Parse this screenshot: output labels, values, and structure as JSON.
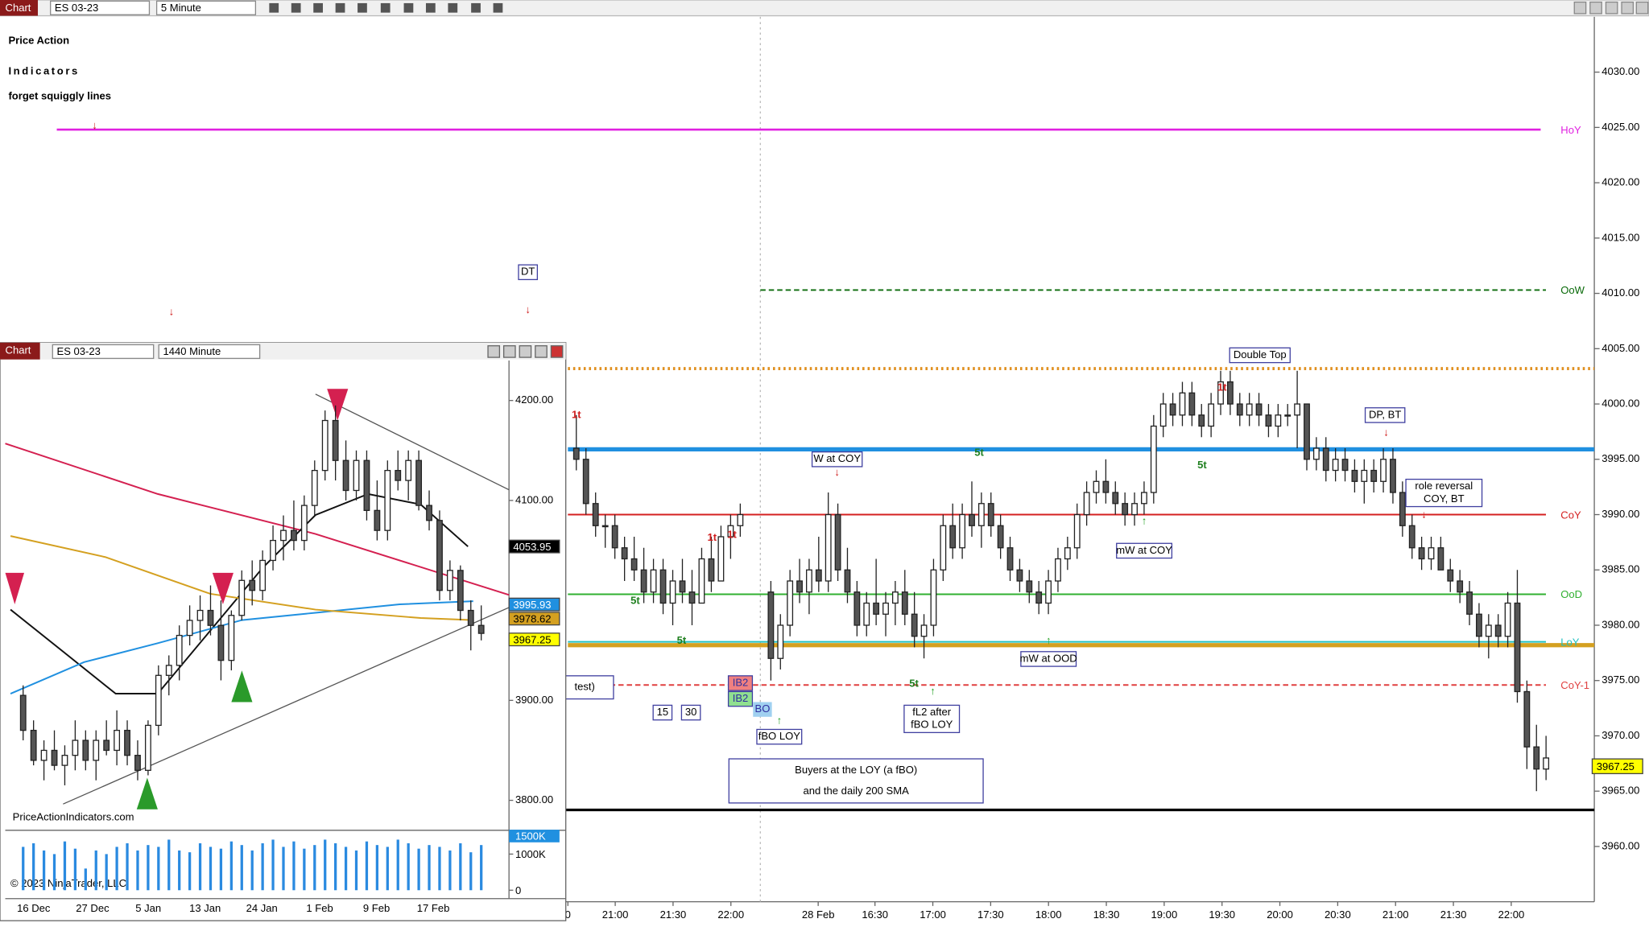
{
  "main_window": {
    "toolbar": {
      "label": "Chart",
      "instrument": "ES 03-23",
      "interval": "5 Minute"
    },
    "branding": {
      "title_line_1": "Price Action",
      "title_line_2": "Indicators",
      "tagline": "forget squiggly lines"
    },
    "chart": {
      "ylim": [
        3955,
        4035
      ],
      "yticks": [
        {
          "value": 4030,
          "label": "4030.00"
        },
        {
          "value": 4025,
          "label": "4025.00"
        },
        {
          "value": 4020,
          "label": "4020.00"
        },
        {
          "value": 4015,
          "label": "4015.00"
        },
        {
          "value": 4010,
          "label": "4010.00"
        },
        {
          "value": 4005,
          "label": "4005.00"
        },
        {
          "value": 4000,
          "label": "4000.00"
        },
        {
          "value": 3995,
          "label": "3995.00"
        },
        {
          "value": 3990,
          "label": "3990.00"
        },
        {
          "value": 3985,
          "label": "3985.00"
        },
        {
          "value": 3980,
          "label": "3980.00"
        },
        {
          "value": 3975,
          "label": "3975.00"
        },
        {
          "value": 3970,
          "label": "3970.00"
        },
        {
          "value": 3965,
          "label": "3965.00"
        },
        {
          "value": 3960,
          "label": "3960.00"
        }
      ],
      "last_price": 3967.25,
      "levels": [
        {
          "name": "HoY",
          "value": 4024.8,
          "color": "#e020e0"
        },
        {
          "name": "OoW",
          "value": 4010.3,
          "color": "#0a6a0a",
          "style": "dashed"
        },
        {
          "name": "CoY",
          "value": 3990,
          "color": "#d42020"
        },
        {
          "name": "OoD",
          "value": 3982.8,
          "color": "#30b030"
        },
        {
          "name": "LoY",
          "value": 3978.5,
          "color": "#20c0c0"
        },
        {
          "name": "CoY-1",
          "value": 3974.6,
          "color": "#e04040",
          "style": "dashed"
        }
      ],
      "lines": [
        {
          "value": 3995.9,
          "color": "#2090e0"
        },
        {
          "value": 3978.2,
          "color": "#d4a020"
        },
        {
          "value": 4003.2,
          "color": "#e09020",
          "style": "dotted"
        },
        {
          "value": 3963.3,
          "color": "#000000"
        }
      ],
      "x_labels": [
        "0",
        "21:00",
        "21:30",
        "22:00",
        "28 Feb",
        "16:30",
        "17:00",
        "17:30",
        "18:00",
        "18:30",
        "19:00",
        "19:30",
        "20:00",
        "20:30",
        "21:00",
        "21:30",
        "22:00"
      ],
      "session_1": [
        [
          3996,
          3999,
          3994,
          3995
        ],
        [
          3995,
          3996,
          3990,
          3991
        ],
        [
          3991,
          3992,
          3988,
          3989
        ],
        [
          3989,
          3990,
          3987,
          3989
        ],
        [
          3989,
          3990,
          3986,
          3987
        ],
        [
          3987,
          3988,
          3984,
          3986
        ],
        [
          3986,
          3988,
          3984,
          3985
        ],
        [
          3985,
          3987,
          3982,
          3983
        ],
        [
          3983,
          3986,
          3982,
          3985
        ],
        [
          3985,
          3986,
          3981,
          3982
        ],
        [
          3982,
          3985,
          3980,
          3984
        ],
        [
          3984,
          3986,
          3982,
          3983
        ],
        [
          3983,
          3985,
          3980,
          3982
        ],
        [
          3982,
          3987,
          3982,
          3986
        ],
        [
          3986,
          3988,
          3983,
          3984
        ],
        [
          3984,
          3989,
          3984,
          3988
        ],
        [
          3988,
          3990,
          3986,
          3989
        ],
        [
          3989,
          3991,
          3988,
          3990
        ]
      ],
      "session_2": [
        [
          3983,
          3984,
          3975,
          3977
        ],
        [
          3977,
          3981,
          3976,
          3980
        ],
        [
          3980,
          3985,
          3979,
          3984
        ],
        [
          3984,
          3986,
          3982,
          3983
        ],
        [
          3983,
          3986,
          3981,
          3985
        ],
        [
          3985,
          3988,
          3983,
          3984
        ],
        [
          3984,
          3992,
          3983,
          3990
        ],
        [
          3990,
          3991,
          3984,
          3985
        ],
        [
          3985,
          3987,
          3982,
          3983
        ],
        [
          3983,
          3984,
          3979,
          3980
        ],
        [
          3980,
          3983,
          3979,
          3982
        ],
        [
          3982,
          3986,
          3980,
          3981
        ],
        [
          3981,
          3983,
          3979,
          3982
        ],
        [
          3982,
          3984,
          3980,
          3983
        ],
        [
          3983,
          3985,
          3980,
          3981
        ],
        [
          3981,
          3983,
          3978,
          3979
        ],
        [
          3979,
          3981,
          3977,
          3980
        ],
        [
          3980,
          3986,
          3979,
          3985
        ],
        [
          3985,
          3990,
          3984,
          3989
        ],
        [
          3989,
          3991,
          3986,
          3987
        ],
        [
          3987,
          3991,
          3986,
          3990
        ],
        [
          3990,
          3993,
          3988,
          3989
        ],
        [
          3989,
          3992,
          3987,
          3991
        ],
        [
          3991,
          3992,
          3988,
          3989
        ],
        [
          3989,
          3990,
          3986,
          3987
        ],
        [
          3987,
          3988,
          3984,
          3985
        ],
        [
          3985,
          3986,
          3983,
          3984
        ],
        [
          3984,
          3985,
          3982,
          3983
        ],
        [
          3983,
          3984,
          3981,
          3982
        ],
        [
          3982,
          3985,
          3981,
          3984
        ],
        [
          3984,
          3987,
          3983,
          3986
        ],
        [
          3986,
          3988,
          3985,
          3987
        ],
        [
          3987,
          3991,
          3986,
          3990
        ],
        [
          3990,
          3993,
          3989,
          3992
        ],
        [
          3992,
          3994,
          3991,
          3993
        ],
        [
          3993,
          3995,
          3991,
          3992
        ],
        [
          3992,
          3993,
          3990,
          3991
        ],
        [
          3991,
          3992,
          3989,
          3990
        ],
        [
          3990,
          3992,
          3989,
          3991
        ],
        [
          3991,
          3993,
          3990,
          3992
        ],
        [
          3992,
          3999,
          3991,
          3998
        ],
        [
          3998,
          4001,
          3997,
          4000
        ],
        [
          4000,
          4001,
          3998,
          3999
        ],
        [
          3999,
          4002,
          3998,
          4001
        ],
        [
          4001,
          4002,
          3998,
          3999
        ],
        [
          3999,
          4000,
          3997,
          3998
        ],
        [
          3998,
          4001,
          3997,
          4000
        ],
        [
          4000,
          4003,
          3999,
          4002
        ],
        [
          4002,
          4003,
          3999,
          4000
        ],
        [
          4000,
          4001,
          3998,
          3999
        ],
        [
          3999,
          4001,
          3998,
          4000
        ],
        [
          4000,
          4001,
          3998,
          3999
        ],
        [
          3999,
          4000,
          3997,
          3998
        ],
        [
          3998,
          4000,
          3997,
          3999
        ],
        [
          3999,
          4000,
          3998,
          3999
        ],
        [
          3999,
          4003,
          3996,
          4000
        ],
        [
          4000,
          4000,
          3994,
          3995
        ],
        [
          3995,
          3997,
          3994,
          3996
        ],
        [
          3996,
          3997,
          3993,
          3994
        ],
        [
          3994,
          3996,
          3993,
          3995
        ],
        [
          3995,
          3996,
          3993,
          3994
        ],
        [
          3994,
          3995,
          3992,
          3993
        ],
        [
          3993,
          3995,
          3991,
          3994
        ],
        [
          3994,
          3995,
          3992,
          3993
        ],
        [
          3993,
          3996,
          3992,
          3995
        ],
        [
          3995,
          3996,
          3991,
          3992
        ],
        [
          3992,
          3993,
          3988,
          3989
        ],
        [
          3989,
          3990,
          3986,
          3987
        ],
        [
          3987,
          3988,
          3985,
          3986
        ],
        [
          3986,
          3988,
          3985,
          3987
        ],
        [
          3987,
          3988,
          3985,
          3985
        ],
        [
          3985,
          3986,
          3983,
          3984
        ],
        [
          3984,
          3985,
          3982,
          3983
        ],
        [
          3983,
          3984,
          3980,
          3981
        ],
        [
          3981,
          3982,
          3978,
          3979
        ],
        [
          3979,
          3981,
          3977,
          3980
        ],
        [
          3980,
          3981,
          3978,
          3979
        ],
        [
          3979,
          3983,
          3978,
          3982
        ],
        [
          3982,
          3985,
          3973,
          3974
        ],
        [
          3974,
          3975,
          3967,
          3969
        ],
        [
          3969,
          3971,
          3965,
          3967
        ],
        [
          3967,
          3970,
          3966,
          3968
        ]
      ]
    },
    "annotations": [
      {
        "lines": [
          "DT"
        ]
      },
      {
        "lines": [
          "Double Top"
        ]
      },
      {
        "lines": [
          "DP, BT"
        ]
      },
      {
        "lines": [
          "W at COY"
        ]
      },
      {
        "lines": [
          "mW at COY"
        ]
      },
      {
        "lines": [
          "mW at OOD"
        ]
      },
      {
        "lines": [
          "role reversal",
          "COY, BT"
        ]
      },
      {
        "lines": [
          "fBO LOY"
        ]
      },
      {
        "lines": [
          "fL2 after",
          "fBO LOY"
        ]
      },
      {
        "lines": [
          "Buyers at the LOY (a fBO)",
          "and the daily 200 SMA"
        ]
      },
      {
        "lines": [
          "test)"
        ]
      },
      {
        "lines": [
          "15"
        ]
      },
      {
        "lines": [
          "30"
        ]
      },
      {
        "lines": [
          "IB2"
        ]
      },
      {
        "lines": [
          "IB2"
        ]
      },
      {
        "lines": [
          "BO"
        ]
      }
    ],
    "markers": [
      "1t",
      "1t",
      "1t",
      "1t",
      "5t",
      "5t",
      "5t",
      "5t",
      "5t"
    ]
  },
  "inset_window": {
    "toolbar": {
      "label": "Chart",
      "instrument": "ES 03-23",
      "interval": "1440 Minute"
    },
    "ylim": [
      3770,
      4240
    ],
    "yticks": [
      {
        "value": 4200,
        "label": "4200.00"
      },
      {
        "value": 4100,
        "label": "4100.00"
      },
      {
        "value": 3900,
        "label": "3900.00"
      },
      {
        "value": 3800,
        "label": "3800.00"
      }
    ],
    "price_labels": [
      {
        "value": 4053.95,
        "label": "4053.95",
        "color": "#000000"
      },
      {
        "value": 3995.93,
        "label": "3995.93",
        "color": "#2090e0"
      },
      {
        "value": 3978.62,
        "label": "3978.62",
        "color": "#d4a020"
      },
      {
        "value": 3967.25,
        "label": "3967.25",
        "color": "#ffff00"
      }
    ],
    "bars": [
      [
        3905,
        3915,
        3860,
        3870
      ],
      [
        3870,
        3880,
        3835,
        3840
      ],
      [
        3840,
        3860,
        3820,
        3850
      ],
      [
        3850,
        3870,
        3830,
        3835
      ],
      [
        3835,
        3855,
        3815,
        3845
      ],
      [
        3845,
        3880,
        3830,
        3860
      ],
      [
        3860,
        3870,
        3830,
        3840
      ],
      [
        3840,
        3870,
        3820,
        3860
      ],
      [
        3860,
        3880,
        3845,
        3850
      ],
      [
        3850,
        3890,
        3835,
        3870
      ],
      [
        3870,
        3880,
        3835,
        3845
      ],
      [
        3845,
        3860,
        3820,
        3830
      ],
      [
        3830,
        3880,
        3825,
        3875
      ],
      [
        3875,
        3935,
        3865,
        3925
      ],
      [
        3925,
        3945,
        3905,
        3935
      ],
      [
        3935,
        3975,
        3920,
        3965
      ],
      [
        3965,
        3995,
        3955,
        3980
      ],
      [
        3980,
        4005,
        3960,
        3990
      ],
      [
        3990,
        4015,
        3965,
        3975
      ],
      [
        3975,
        4000,
        3920,
        3940
      ],
      [
        3940,
        3990,
        3930,
        3985
      ],
      [
        3985,
        4030,
        3980,
        4020
      ],
      [
        4020,
        4040,
        3995,
        4010
      ],
      [
        4010,
        4050,
        4000,
        4040
      ],
      [
        4040,
        4075,
        4030,
        4060
      ],
      [
        4060,
        4085,
        4040,
        4070
      ],
      [
        4070,
        4100,
        4050,
        4060
      ],
      [
        4060,
        4105,
        4050,
        4095
      ],
      [
        4095,
        4140,
        4085,
        4130
      ],
      [
        4130,
        4190,
        4120,
        4180
      ],
      [
        4180,
        4195,
        4120,
        4140
      ],
      [
        4140,
        4160,
        4100,
        4110
      ],
      [
        4110,
        4150,
        4100,
        4140
      ],
      [
        4140,
        4150,
        4080,
        4090
      ],
      [
        4090,
        4120,
        4060,
        4070
      ],
      [
        4070,
        4140,
        4060,
        4130
      ],
      [
        4130,
        4150,
        4110,
        4120
      ],
      [
        4120,
        4150,
        4100,
        4140
      ],
      [
        4140,
        4150,
        4090,
        4095
      ],
      [
        4095,
        4110,
        4070,
        4080
      ],
      [
        4080,
        4090,
        4000,
        4010
      ],
      [
        4010,
        4040,
        4000,
        4030
      ],
      [
        4030,
        4035,
        3980,
        3990
      ],
      [
        3990,
        4000,
        3950,
        3975
      ],
      [
        3975,
        3995,
        3960,
        3967
      ]
    ],
    "volume_ylim": [
      0,
      1600000
    ],
    "volume_ticks": [
      {
        "value": 1500000,
        "label": "1500K"
      },
      {
        "value": 1000000,
        "label": "1000K"
      },
      0
    ],
    "volumes": [
      1200000,
      1300000,
      1100000,
      1000000,
      1350000,
      1150000,
      600000,
      1100000,
      1000000,
      1200000,
      1300000,
      1100000,
      1250000,
      1200000,
      1400000,
      1100000,
      1050000,
      1300000,
      1200000,
      1150000,
      1350000,
      1250000,
      1100000,
      1300000,
      1400000,
      1200000,
      1350000,
      1150000,
      1250000,
      1400000,
      1300000,
      1200000,
      1100000,
      1350000,
      1250000,
      1200000,
      1400000,
      1300000,
      1150000,
      1250000,
      1200000,
      1100000,
      1300000,
      1050000,
      1250000
    ],
    "x_labels": [
      "16 Dec",
      "27 Dec",
      "5 Jan",
      "13 Jan",
      "24 Jan",
      "1 Feb",
      "9 Feb",
      "17 Feb"
    ],
    "website": "PriceActionIndicators.com",
    "copyright": "© 2023 NinjaTrader, LLC"
  }
}
